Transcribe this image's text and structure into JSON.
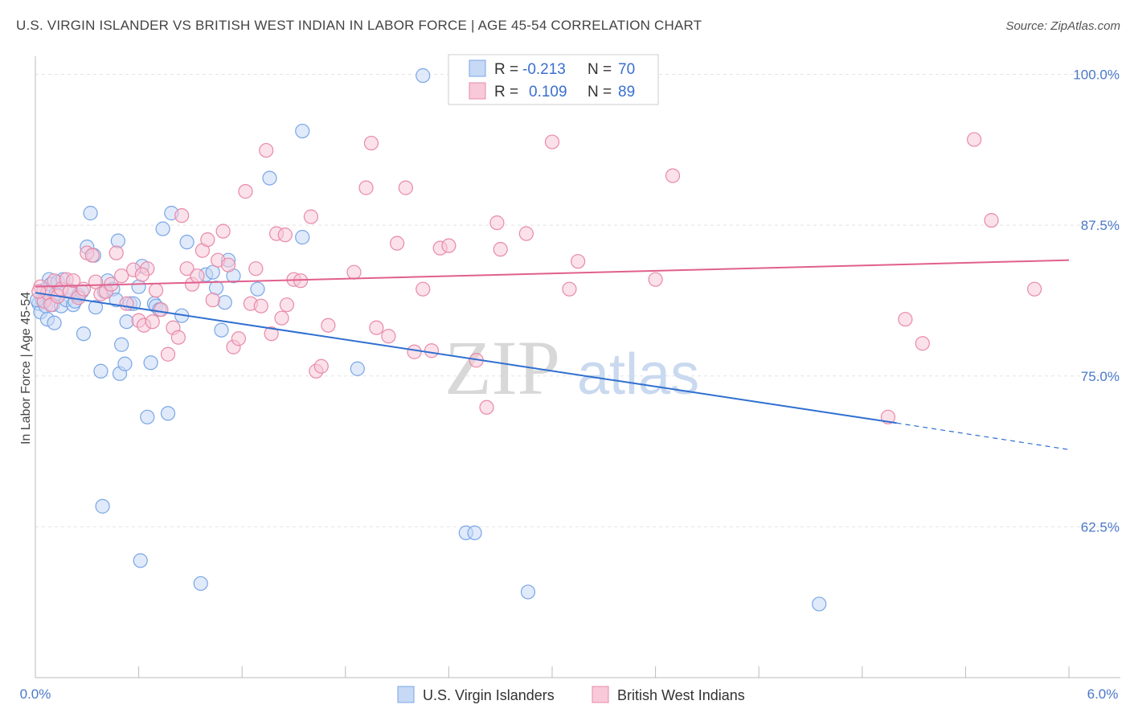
{
  "title": "U.S. VIRGIN ISLANDER VS BRITISH WEST INDIAN IN LABOR FORCE | AGE 45-54 CORRELATION CHART",
  "source": "Source: ZipAtlas.com",
  "watermark": {
    "zip": "ZIP",
    "atlas": "atlas"
  },
  "legend": {
    "r_label": "R =",
    "n_label": "N =",
    "rows": [
      {
        "r": "-0.213",
        "n": "70"
      },
      {
        "r": "0.109",
        "n": "89"
      }
    ]
  },
  "chart_data": {
    "type": "scatter",
    "xlabel": "",
    "ylabel": "In Labor Force | Age 45-54",
    "xlim": [
      0.0,
      6.0
    ],
    "ylim": [
      50.0,
      101.5
    ],
    "x_tick_labels": [
      "0.0%",
      "6.0%"
    ],
    "y_ticks": [
      62.5,
      75.0,
      87.5,
      100.0
    ],
    "y_tick_labels": [
      "62.5%",
      "75.0%",
      "87.5%",
      "100.0%"
    ],
    "grid": true,
    "legend_position": "top-center",
    "series": [
      {
        "name": "U.S. Virgin Islanders",
        "color": "#7aa6e6",
        "fill": "#c6d9f5",
        "trend": {
          "x": [
            0.0,
            5.0
          ],
          "y": [
            81.9,
            71.1
          ],
          "dashed_to": [
            6.0,
            68.9
          ],
          "color": "#2f6fd0"
        },
        "points": [
          [
            0.02,
            81.0
          ],
          [
            0.03,
            80.3
          ],
          [
            0.04,
            81.3
          ],
          [
            0.05,
            82.1
          ],
          [
            0.06,
            80.8
          ],
          [
            0.07,
            79.7
          ],
          [
            0.08,
            83.0
          ],
          [
            0.09,
            82.6
          ],
          [
            0.1,
            80.9
          ],
          [
            0.11,
            79.4
          ],
          [
            0.12,
            81.8
          ],
          [
            0.13,
            82.8
          ],
          [
            0.15,
            80.8
          ],
          [
            0.16,
            83.0
          ],
          [
            0.18,
            81.3
          ],
          [
            0.2,
            82.1
          ],
          [
            0.22,
            80.9
          ],
          [
            0.23,
            81.2
          ],
          [
            0.25,
            81.7
          ],
          [
            0.27,
            82.0
          ],
          [
            0.28,
            78.5
          ],
          [
            0.3,
            85.7
          ],
          [
            0.32,
            88.5
          ],
          [
            0.34,
            85.0
          ],
          [
            0.35,
            80.7
          ],
          [
            0.38,
            75.4
          ],
          [
            0.39,
            64.2
          ],
          [
            0.4,
            82.0
          ],
          [
            0.42,
            82.9
          ],
          [
            0.45,
            82.2
          ],
          [
            0.47,
            81.3
          ],
          [
            0.48,
            86.2
          ],
          [
            0.49,
            75.2
          ],
          [
            0.5,
            77.6
          ],
          [
            0.52,
            76.0
          ],
          [
            0.53,
            79.5
          ],
          [
            0.55,
            81.0
          ],
          [
            0.57,
            81.0
          ],
          [
            0.6,
            82.4
          ],
          [
            0.61,
            59.7
          ],
          [
            0.62,
            84.1
          ],
          [
            0.65,
            71.6
          ],
          [
            0.67,
            76.1
          ],
          [
            0.69,
            81.0
          ],
          [
            0.7,
            80.8
          ],
          [
            0.72,
            80.5
          ],
          [
            0.74,
            87.2
          ],
          [
            0.77,
            71.9
          ],
          [
            0.79,
            88.5
          ],
          [
            0.85,
            80.0
          ],
          [
            0.88,
            86.1
          ],
          [
            0.96,
            57.8
          ],
          [
            0.99,
            83.4
          ],
          [
            1.03,
            83.6
          ],
          [
            1.05,
            82.3
          ],
          [
            1.08,
            78.8
          ],
          [
            1.1,
            81.1
          ],
          [
            1.12,
            84.6
          ],
          [
            1.15,
            83.3
          ],
          [
            1.29,
            82.2
          ],
          [
            1.36,
            91.4
          ],
          [
            1.55,
            86.5
          ],
          [
            1.55,
            95.3
          ],
          [
            1.87,
            75.6
          ],
          [
            2.25,
            99.9
          ],
          [
            2.5,
            62.0
          ],
          [
            2.55,
            62.0
          ],
          [
            2.86,
            57.1
          ],
          [
            4.55,
            56.1
          ],
          [
            0.01,
            81.3
          ]
        ]
      },
      {
        "name": "British West Indians",
        "color": "#e88aa8",
        "fill": "#f8c9d8",
        "trend": {
          "x": [
            0.0,
            6.0
          ],
          "y": [
            82.4,
            84.6
          ],
          "color": "#e0608c"
        },
        "points": [
          [
            0.03,
            82.4
          ],
          [
            0.05,
            81.2
          ],
          [
            0.07,
            81.9
          ],
          [
            0.09,
            80.9
          ],
          [
            0.11,
            82.9
          ],
          [
            0.13,
            81.6
          ],
          [
            0.15,
            82.2
          ],
          [
            0.18,
            83.0
          ],
          [
            0.2,
            82.0
          ],
          [
            0.22,
            82.9
          ],
          [
            0.25,
            81.5
          ],
          [
            0.28,
            82.2
          ],
          [
            0.3,
            85.2
          ],
          [
            0.33,
            85.0
          ],
          [
            0.35,
            82.8
          ],
          [
            0.38,
            81.8
          ],
          [
            0.41,
            82.0
          ],
          [
            0.44,
            82.6
          ],
          [
            0.47,
            85.2
          ],
          [
            0.5,
            83.3
          ],
          [
            0.53,
            81.0
          ],
          [
            0.57,
            83.8
          ],
          [
            0.6,
            79.6
          ],
          [
            0.63,
            79.2
          ],
          [
            0.65,
            83.9
          ],
          [
            0.68,
            79.5
          ],
          [
            0.7,
            82.1
          ],
          [
            0.73,
            80.5
          ],
          [
            0.77,
            76.8
          ],
          [
            0.8,
            79.0
          ],
          [
            0.83,
            78.2
          ],
          [
            0.85,
            88.3
          ],
          [
            0.88,
            83.9
          ],
          [
            0.91,
            82.6
          ],
          [
            0.94,
            83.3
          ],
          [
            0.97,
            85.4
          ],
          [
            1.0,
            86.3
          ],
          [
            1.03,
            81.3
          ],
          [
            1.06,
            84.6
          ],
          [
            1.09,
            87.0
          ],
          [
            1.12,
            84.2
          ],
          [
            1.15,
            77.4
          ],
          [
            1.18,
            78.1
          ],
          [
            1.22,
            90.3
          ],
          [
            1.25,
            81.0
          ],
          [
            1.28,
            83.9
          ],
          [
            1.31,
            80.8
          ],
          [
            1.34,
            93.7
          ],
          [
            1.37,
            78.5
          ],
          [
            1.4,
            86.8
          ],
          [
            1.43,
            79.8
          ],
          [
            1.46,
            80.9
          ],
          [
            1.5,
            83.0
          ],
          [
            1.54,
            82.9
          ],
          [
            1.6,
            88.2
          ],
          [
            1.63,
            75.4
          ],
          [
            1.66,
            75.8
          ],
          [
            1.7,
            79.2
          ],
          [
            1.85,
            83.6
          ],
          [
            1.92,
            90.6
          ],
          [
            1.95,
            94.3
          ],
          [
            1.98,
            79.0
          ],
          [
            2.05,
            78.3
          ],
          [
            2.1,
            86.0
          ],
          [
            2.15,
            90.6
          ],
          [
            2.2,
            77.0
          ],
          [
            2.25,
            82.2
          ],
          [
            2.3,
            77.1
          ],
          [
            2.35,
            85.6
          ],
          [
            2.4,
            85.8
          ],
          [
            2.56,
            76.3
          ],
          [
            2.62,
            72.4
          ],
          [
            2.68,
            87.7
          ],
          [
            2.7,
            85.5
          ],
          [
            2.85,
            86.8
          ],
          [
            3.0,
            94.4
          ],
          [
            3.1,
            82.2
          ],
          [
            3.15,
            84.5
          ],
          [
            3.6,
            83.0
          ],
          [
            3.7,
            91.6
          ],
          [
            4.95,
            71.6
          ],
          [
            5.05,
            79.7
          ],
          [
            5.15,
            77.7
          ],
          [
            5.45,
            94.6
          ],
          [
            5.55,
            87.9
          ],
          [
            5.8,
            82.2
          ],
          [
            0.02,
            82.0
          ],
          [
            0.62,
            83.4
          ],
          [
            1.45,
            86.7
          ]
        ]
      }
    ]
  }
}
